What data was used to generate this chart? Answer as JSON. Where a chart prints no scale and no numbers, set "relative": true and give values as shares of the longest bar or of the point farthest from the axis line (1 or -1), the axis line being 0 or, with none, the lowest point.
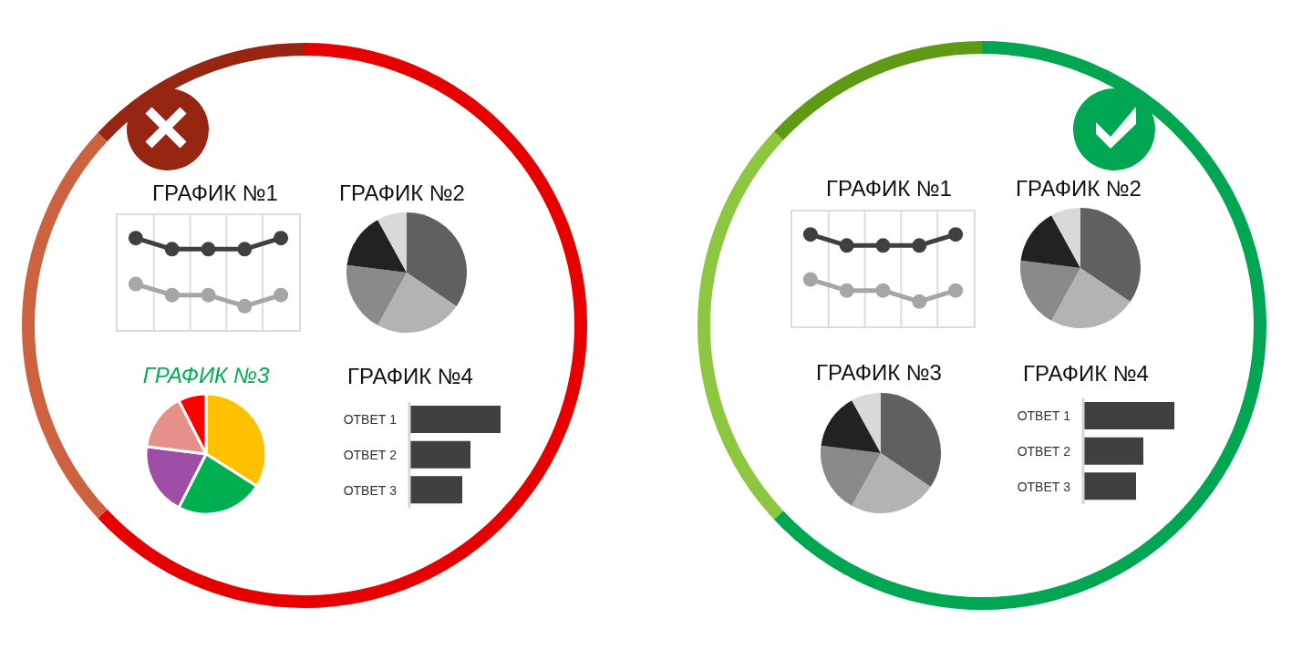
{
  "chart_data": [
    {
      "type": "line",
      "title": "ГРАФИК №1",
      "categories": [
        null,
        null,
        null,
        null,
        null
      ],
      "relative": true,
      "series": [
        {
          "color": "#404040",
          "values": [
            1,
            0.88,
            0.88,
            0.88,
            1
          ]
        },
        {
          "color": "#a6a6a6",
          "values": [
            0.5,
            0.38,
            0.38,
            0.26,
            0.38
          ]
        }
      ],
      "marker": "circle",
      "grid": "x"
    },
    {
      "type": "pie",
      "title": "ГРАФИК №2",
      "categories": [
        null,
        null,
        null,
        null,
        null
      ],
      "values": [
        34.5,
        23.5,
        19,
        15,
        8
      ],
      "colors": [
        "#606060",
        "#b3b3b3",
        "#8a8a8a",
        "#222222",
        "#d9d9d9"
      ]
    },
    {
      "type": "pie",
      "title": "ГРАФИК №3",
      "categories": [
        null,
        null,
        null,
        null,
        null
      ],
      "values": [
        34,
        23.5,
        19.5,
        15.5,
        7.5
      ],
      "colors": [
        "#ffc000",
        "#00b050",
        "#9e4fa5",
        "#e59088",
        "#ff0000"
      ]
    },
    {
      "type": "bar",
      "orientation": "horizontal",
      "relative": true,
      "title": "ГРАФИК №4",
      "categories": [
        "ОТВЕТ 1",
        "ОТВЕТ 2",
        "ОТВЕТ 3"
      ],
      "values": [
        1,
        0.67,
        0.58
      ],
      "color": "#404040"
    },
    {
      "type": "line",
      "title": "ГРАФИК №1",
      "categories": [
        null,
        null,
        null,
        null,
        null
      ],
      "relative": true,
      "series": [
        {
          "color": "#404040",
          "values": [
            1,
            0.88,
            0.88,
            0.88,
            1
          ]
        },
        {
          "color": "#a6a6a6",
          "values": [
            0.51,
            0.39,
            0.39,
            0.27,
            0.39
          ]
        }
      ],
      "marker": "circle",
      "grid": "x"
    },
    {
      "type": "pie",
      "title": "ГРАФИК №2",
      "categories": [
        null,
        null,
        null,
        null,
        null
      ],
      "values": [
        34.5,
        23.5,
        19,
        15,
        8
      ],
      "colors": [
        "#606060",
        "#b3b3b3",
        "#8a8a8a",
        "#222222",
        "#d9d9d9"
      ]
    },
    {
      "type": "pie",
      "title": "ГРАФИК №3",
      "categories": [
        null,
        null,
        null,
        null,
        null
      ],
      "values": [
        34.5,
        23.5,
        19,
        15,
        8
      ],
      "colors": [
        "#606060",
        "#b3b3b3",
        "#8a8a8a",
        "#222222",
        "#d9d9d9"
      ]
    },
    {
      "type": "bar",
      "orientation": "horizontal",
      "relative": true,
      "title": "ГРАФИК №4",
      "categories": [
        "ОТВЕТ 1",
        "ОТВЕТ 2",
        "ОТВЕТ 3"
      ],
      "values": [
        1,
        0.66,
        0.58
      ],
      "color": "#404040"
    }
  ]
}
